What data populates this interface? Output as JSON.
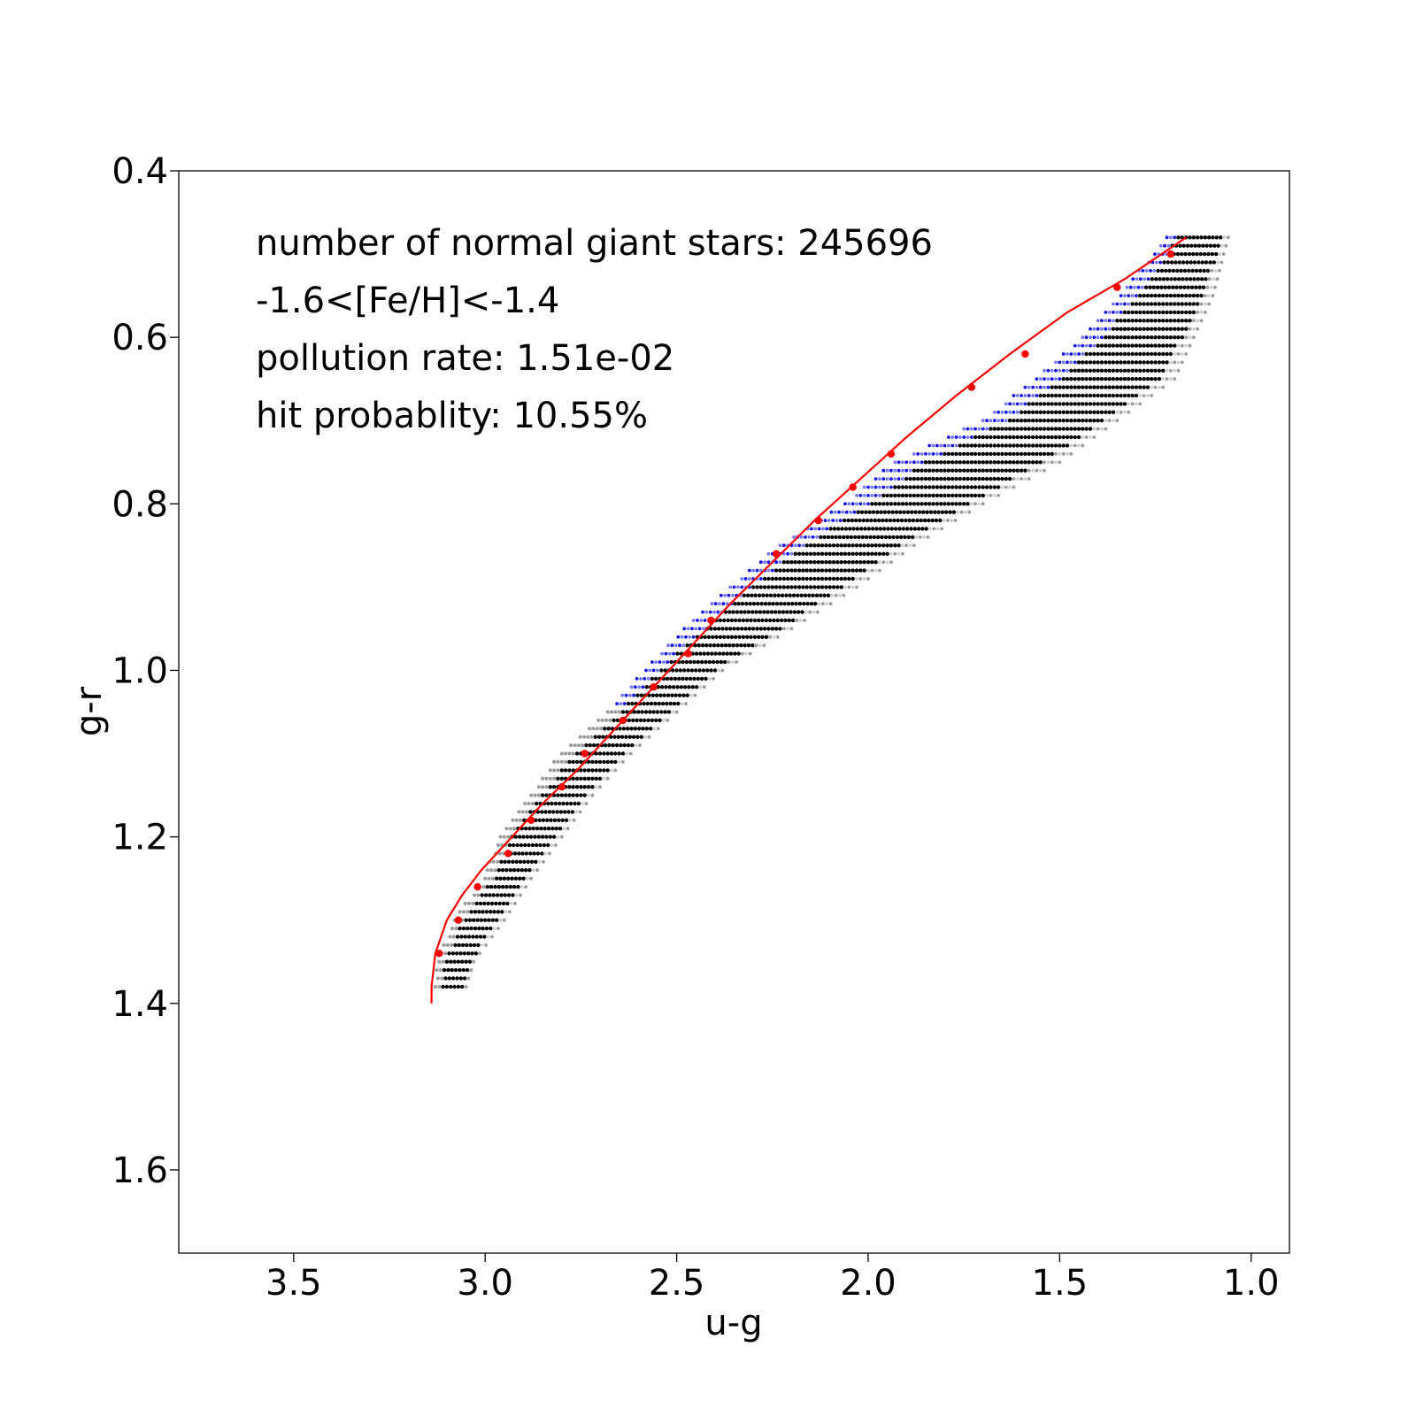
{
  "chart_data": {
    "type": "scatter",
    "title": "",
    "xlabel": "u-g",
    "ylabel": "g-r",
    "xlim": [
      3.8,
      0.9
    ],
    "ylim": [
      1.7,
      0.4
    ],
    "x_inverted": true,
    "y_inverted": true,
    "xticks": [
      {
        "value": 3.5,
        "label": "3.5"
      },
      {
        "value": 3.0,
        "label": "3.0"
      },
      {
        "value": 2.5,
        "label": "2.5"
      },
      {
        "value": 2.0,
        "label": "2.0"
      },
      {
        "value": 1.5,
        "label": "1.5"
      },
      {
        "value": 1.0,
        "label": "1.0"
      }
    ],
    "yticks": [
      {
        "value": 0.4,
        "label": "0.4"
      },
      {
        "value": 0.6,
        "label": "0.6"
      },
      {
        "value": 0.8,
        "label": "0.8"
      },
      {
        "value": 1.0,
        "label": "1.0"
      },
      {
        "value": 1.2,
        "label": "1.2"
      },
      {
        "value": 1.4,
        "label": "1.4"
      },
      {
        "value": 1.6,
        "label": "1.6"
      }
    ],
    "grid": false,
    "annotations": [
      "number of normal giant stars: 245696",
      "-1.6<[Fe/H]<-1.4",
      "pollution rate: 1.51e-02",
      "hit probablity: 10.55%"
    ],
    "band": {
      "description_rows": "g-r rows from 0.48 to 1.38 in steps of 0.01",
      "gr_start": 0.48,
      "gr_end": 1.38,
      "gr_step": 0.01,
      "ug_step": 0.01,
      "edges": [
        {
          "gr": 0.48,
          "left": 1.22,
          "right": 1.06
        },
        {
          "gr": 0.55,
          "left": 1.34,
          "right": 1.1
        },
        {
          "gr": 0.6,
          "left": 1.44,
          "right": 1.15
        },
        {
          "gr": 0.65,
          "left": 1.56,
          "right": 1.2
        },
        {
          "gr": 0.7,
          "left": 1.7,
          "right": 1.35
        },
        {
          "gr": 0.75,
          "left": 1.93,
          "right": 1.5
        },
        {
          "gr": 0.8,
          "left": 2.06,
          "right": 1.7
        },
        {
          "gr": 0.85,
          "left": 2.23,
          "right": 1.88
        },
        {
          "gr": 0.9,
          "left": 2.36,
          "right": 2.03
        },
        {
          "gr": 0.95,
          "left": 2.48,
          "right": 2.2
        },
        {
          "gr": 1.0,
          "left": 2.58,
          "right": 2.38
        },
        {
          "gr": 1.05,
          "left": 2.68,
          "right": 2.5
        },
        {
          "gr": 1.1,
          "left": 2.8,
          "right": 2.62
        },
        {
          "gr": 1.15,
          "left": 2.88,
          "right": 2.72
        },
        {
          "gr": 1.2,
          "left": 2.96,
          "right": 2.8
        },
        {
          "gr": 1.25,
          "left": 3.0,
          "right": 2.88
        },
        {
          "gr": 1.3,
          "left": 3.08,
          "right": 2.95
        },
        {
          "gr": 1.35,
          "left": 3.12,
          "right": 3.03
        },
        {
          "gr": 1.38,
          "left": 3.13,
          "right": 3.05
        }
      ]
    },
    "series": [
      {
        "kind": "line",
        "color": "#ff0000",
        "x": [
          3.14,
          3.14,
          3.13,
          3.1,
          3.06,
          3.01,
          2.93,
          2.85,
          2.76,
          2.66,
          2.56,
          2.46,
          2.36,
          2.25,
          2.14,
          2.02,
          1.9,
          1.77,
          1.63,
          1.48,
          1.33,
          1.17
        ],
        "y": [
          1.4,
          1.38,
          1.34,
          1.3,
          1.27,
          1.24,
          1.2,
          1.16,
          1.12,
          1.07,
          1.02,
          0.97,
          0.92,
          0.87,
          0.82,
          0.77,
          0.72,
          0.67,
          0.62,
          0.57,
          0.53,
          0.48
        ]
      },
      {
        "kind": "points",
        "color": "#ff0000",
        "x": [
          3.12,
          3.07,
          3.02,
          2.94,
          2.88,
          2.8,
          2.74,
          2.64,
          2.56,
          2.47,
          2.41,
          2.24,
          2.13,
          2.04,
          1.94,
          1.73,
          1.59,
          1.35,
          1.21
        ],
        "y": [
          1.34,
          1.3,
          1.26,
          1.22,
          1.18,
          1.14,
          1.1,
          1.06,
          1.02,
          0.98,
          0.94,
          0.86,
          0.82,
          0.78,
          0.74,
          0.66,
          0.62,
          0.54,
          0.5
        ]
      }
    ],
    "colors": {
      "core": "#000000",
      "edge_gray": "#9a9a9a",
      "faint_gray": "#cfcfcf",
      "polluted_blue": "#1414e6",
      "light_blue": "#7878ff",
      "fit_line": "#ff0000"
    }
  }
}
